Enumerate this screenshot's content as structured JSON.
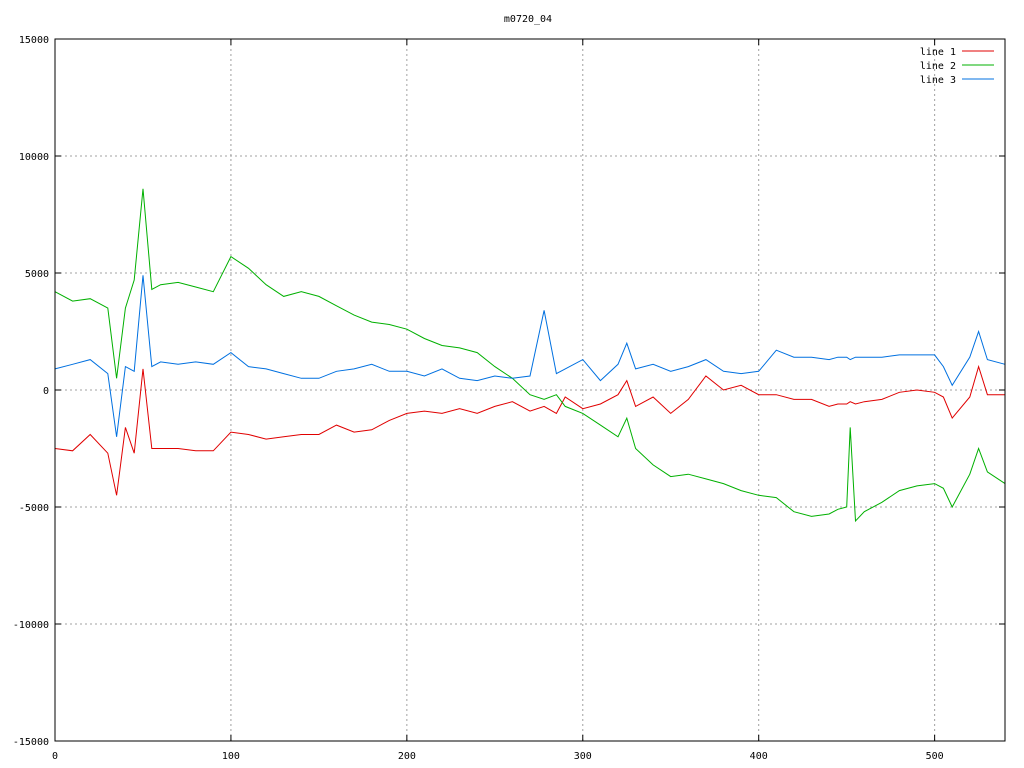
{
  "chart_data": {
    "type": "line",
    "title": "m0720_04",
    "xlabel": "",
    "ylabel": "",
    "xlim": [
      0,
      540
    ],
    "ylim": [
      -15000,
      15000
    ],
    "x_ticks": [
      0,
      100,
      200,
      300,
      400,
      500
    ],
    "y_ticks": [
      -15000,
      -10000,
      -5000,
      0,
      5000,
      10000,
      15000
    ],
    "x_tick_labels": [
      "0",
      "100",
      "200",
      "300",
      "400",
      "500"
    ],
    "y_tick_labels": [
      "-15000",
      "-10000",
      "-5000",
      "0",
      "5000",
      "10000",
      "15000"
    ],
    "grid": true,
    "legend_position": "top-right",
    "x": [
      0,
      10,
      20,
      30,
      35,
      40,
      45,
      50,
      55,
      60,
      70,
      80,
      90,
      100,
      110,
      120,
      130,
      140,
      150,
      160,
      170,
      180,
      190,
      200,
      210,
      220,
      230,
      240,
      250,
      260,
      270,
      278,
      285,
      290,
      300,
      310,
      320,
      325,
      330,
      340,
      350,
      360,
      370,
      380,
      390,
      400,
      410,
      420,
      430,
      440,
      445,
      450,
      452,
      455,
      460,
      470,
      480,
      490,
      500,
      505,
      510,
      520,
      525,
      530,
      540
    ],
    "series": [
      {
        "name": "line 1",
        "color": "#e00000",
        "values": [
          -2500,
          -2600,
          -1900,
          -2700,
          -4500,
          -1600,
          -2700,
          900,
          -2500,
          -2500,
          -2500,
          -2600,
          -2600,
          -1800,
          -1900,
          -2100,
          -2000,
          -1900,
          -1900,
          -1500,
          -1800,
          -1700,
          -1300,
          -1000,
          -900,
          -1000,
          -800,
          -1000,
          -700,
          -500,
          -900,
          -700,
          -1000,
          -300,
          -800,
          -600,
          -200,
          400,
          -700,
          -300,
          -1000,
          -400,
          600,
          0,
          200,
          -200,
          -200,
          -400,
          -400,
          -700,
          -600,
          -600,
          -500,
          -600,
          -500,
          -400,
          -100,
          0,
          -100,
          -300,
          -1200,
          -300,
          1000,
          -200,
          -200
        ]
      },
      {
        "name": "line 2",
        "color": "#00b000",
        "values": [
          4200,
          3800,
          3900,
          3500,
          500,
          3500,
          4700,
          8600,
          4300,
          4500,
          4600,
          4400,
          4200,
          5700,
          5200,
          4500,
          4000,
          4200,
          4000,
          3600,
          3200,
          2900,
          2800,
          2600,
          2200,
          1900,
          1800,
          1600,
          1000,
          500,
          -200,
          -400,
          -200,
          -700,
          -1000,
          -1500,
          -2000,
          -1200,
          -2500,
          -3200,
          -3700,
          -3600,
          -3800,
          -4000,
          -4300,
          -4500,
          -4600,
          -5200,
          -5400,
          -5300,
          -5100,
          -5000,
          -1600,
          -5600,
          -5200,
          -4800,
          -4300,
          -4100,
          -4000,
          -4200,
          -5000,
          -3600,
          -2500,
          -3500,
          -4000
        ]
      },
      {
        "name": "line 3",
        "color": "#0070e0",
        "values": [
          900,
          1100,
          1300,
          700,
          -2000,
          1000,
          800,
          4900,
          1000,
          1200,
          1100,
          1200,
          1100,
          1600,
          1000,
          900,
          700,
          500,
          500,
          800,
          900,
          1100,
          800,
          800,
          600,
          900,
          500,
          400,
          600,
          500,
          600,
          3400,
          700,
          900,
          1300,
          400,
          1100,
          2000,
          900,
          1100,
          800,
          1000,
          1300,
          800,
          700,
          800,
          1700,
          1400,
          1400,
          1300,
          1400,
          1400,
          1300,
          1400,
          1400,
          1400,
          1500,
          1500,
          1500,
          1000,
          200,
          1400,
          2500,
          1300,
          1100
        ]
      }
    ]
  }
}
